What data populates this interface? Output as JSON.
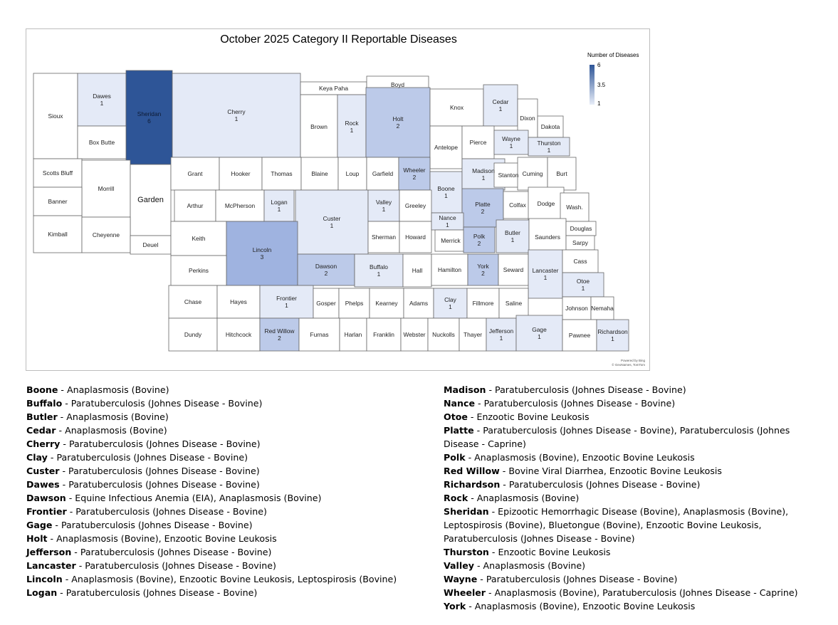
{
  "map": {
    "title": "October 2025 Category II Reportable Diseases",
    "legend": {
      "title": "Number of Diseases",
      "max": "6",
      "mid": "3.5",
      "min": "1"
    },
    "attribution": [
      "Powered by Bing",
      "© GeoNames, TomTom"
    ],
    "colors": {
      "c1": "#e4eaf7",
      "c2": "#bccae9",
      "c3": "#9fb3e0",
      "c6": "#2e5597",
      "none": "#ffffff"
    },
    "counties": [
      {
        "name": "Sioux",
        "count": "",
        "x": "",
        "y": ""
      },
      {
        "name": "Dawes",
        "count": "1"
      },
      {
        "name": "Sheridan",
        "count": "6"
      },
      {
        "name": "Cherry",
        "count": "1"
      },
      {
        "name": "Keya Paha",
        "count": ""
      },
      {
        "name": "Boyd",
        "count": ""
      },
      {
        "name": "Box Butte",
        "count": ""
      },
      {
        "name": "Brown",
        "count": ""
      },
      {
        "name": "Rock",
        "count": "1"
      },
      {
        "name": "Holt",
        "count": "2"
      },
      {
        "name": "Knox",
        "count": ""
      },
      {
        "name": "Cedar",
        "count": "1"
      },
      {
        "name": "Dixon",
        "count": ""
      },
      {
        "name": "Dakota",
        "count": ""
      },
      {
        "name": "Antelope",
        "count": ""
      },
      {
        "name": "Pierce",
        "count": ""
      },
      {
        "name": "Wayne",
        "count": "1"
      },
      {
        "name": "Thurston",
        "count": "1"
      },
      {
        "name": "Scotts Bluff",
        "count": ""
      },
      {
        "name": "Morrill",
        "count": ""
      },
      {
        "name": "Garden",
        "count": ""
      },
      {
        "name": "Grant",
        "count": ""
      },
      {
        "name": "Hooker",
        "count": ""
      },
      {
        "name": "Thomas",
        "count": ""
      },
      {
        "name": "Blaine",
        "count": ""
      },
      {
        "name": "Loup",
        "count": ""
      },
      {
        "name": "Garfield",
        "count": ""
      },
      {
        "name": "Wheeler",
        "count": "2"
      },
      {
        "name": "Boone",
        "count": "1"
      },
      {
        "name": "Madison",
        "count": "1"
      },
      {
        "name": "Stanton",
        "count": ""
      },
      {
        "name": "Cuming",
        "count": ""
      },
      {
        "name": "Burt",
        "count": ""
      },
      {
        "name": "Banner",
        "count": ""
      },
      {
        "name": "Arthur",
        "count": ""
      },
      {
        "name": "McPherson",
        "count": ""
      },
      {
        "name": "Logan",
        "count": "1"
      },
      {
        "name": "Custer",
        "count": "1"
      },
      {
        "name": "Valley",
        "count": "1"
      },
      {
        "name": "Greeley",
        "count": ""
      },
      {
        "name": "Platte",
        "count": "2"
      },
      {
        "name": "Colfax",
        "count": ""
      },
      {
        "name": "Dodge",
        "count": ""
      },
      {
        "name": "Wash.",
        "count": ""
      },
      {
        "name": "Kimball",
        "count": ""
      },
      {
        "name": "Cheyenne",
        "count": ""
      },
      {
        "name": "Deuel",
        "count": ""
      },
      {
        "name": "Keith",
        "count": ""
      },
      {
        "name": "Lincoln",
        "count": "3"
      },
      {
        "name": "Sherman",
        "count": ""
      },
      {
        "name": "Howard",
        "count": ""
      },
      {
        "name": "Nance",
        "count": "1"
      },
      {
        "name": "Merrick",
        "count": ""
      },
      {
        "name": "Polk",
        "count": "2"
      },
      {
        "name": "Butler",
        "count": "1"
      },
      {
        "name": "Saunders",
        "count": ""
      },
      {
        "name": "Douglas",
        "count": ""
      },
      {
        "name": "Sarpy",
        "count": ""
      },
      {
        "name": "Perkins",
        "count": ""
      },
      {
        "name": "Dawson",
        "count": "2"
      },
      {
        "name": "Buffalo",
        "count": "1"
      },
      {
        "name": "Hall",
        "count": ""
      },
      {
        "name": "Hamilton",
        "count": ""
      },
      {
        "name": "York",
        "count": "2"
      },
      {
        "name": "Seward",
        "count": ""
      },
      {
        "name": "Lancaster",
        "count": "1"
      },
      {
        "name": "Cass",
        "count": ""
      },
      {
        "name": "Otoe",
        "count": "1"
      },
      {
        "name": "Chase",
        "count": ""
      },
      {
        "name": "Hayes",
        "count": ""
      },
      {
        "name": "Frontier",
        "count": "1"
      },
      {
        "name": "Gosper",
        "count": ""
      },
      {
        "name": "Phelps",
        "count": ""
      },
      {
        "name": "Kearney",
        "count": ""
      },
      {
        "name": "Adams",
        "count": ""
      },
      {
        "name": "Clay",
        "count": "1"
      },
      {
        "name": "Fillmore",
        "count": ""
      },
      {
        "name": "Saline",
        "count": ""
      },
      {
        "name": "Johnson",
        "count": ""
      },
      {
        "name": "Nemaha",
        "count": ""
      },
      {
        "name": "Dundy",
        "count": ""
      },
      {
        "name": "Hitchcock",
        "count": ""
      },
      {
        "name": "Red Willow",
        "count": "2"
      },
      {
        "name": "Furnas",
        "count": ""
      },
      {
        "name": "Harlan",
        "count": ""
      },
      {
        "name": "Franklin",
        "count": ""
      },
      {
        "name": "Webster",
        "count": ""
      },
      {
        "name": "Nuckolls",
        "count": ""
      },
      {
        "name": "Thayer",
        "count": ""
      },
      {
        "name": "Jefferson",
        "count": "1"
      },
      {
        "name": "Gage",
        "count": "1"
      },
      {
        "name": "Pawnee",
        "count": ""
      },
      {
        "name": "Richardson",
        "count": "1"
      }
    ]
  },
  "diseases_left": [
    {
      "county": "Boone",
      "sep": " - ",
      "diseases": "Anaplasmosis (Bovine)"
    },
    {
      "county": "Buffalo",
      "sep": " - ",
      "diseases": "Paratuberculosis (Johnes Disease - Bovine)"
    },
    {
      "county": "Butler",
      "sep": " - ",
      "diseases": "Anaplasmosis (Bovine)"
    },
    {
      "county": "Cedar",
      "sep": " - ",
      "diseases": "Anaplasmosis (Bovine)"
    },
    {
      "county": "Cherry",
      "sep": " - ",
      "diseases": "Paratuberculosis (Johnes Disease - Bovine)"
    },
    {
      "county": "Clay",
      "sep": " - ",
      "diseases": "Paratuberculosis (Johnes Disease - Bovine)"
    },
    {
      "county": "Custer",
      "sep": " - ",
      "diseases": "Paratuberculosis (Johnes Disease - Bovine)"
    },
    {
      "county": "Dawes",
      "sep": " - ",
      "diseases": "Paratuberculosis (Johnes Disease - Bovine)"
    },
    {
      "county": "Dawson",
      "sep": " - ",
      "diseases": "Equine Infectious Anemia (EIA), Anaplasmosis (Bovine)"
    },
    {
      "county": "Frontier",
      "sep": " - ",
      "diseases": "Paratuberculosis (Johnes Disease - Bovine)"
    },
    {
      "county": "Gage",
      "sep": " - ",
      "diseases": "Paratuberculosis (Johnes Disease - Bovine)"
    },
    {
      "county": "Holt",
      "sep": " - ",
      "diseases": "Anaplasmosis (Bovine), Enzootic Bovine Leukosis"
    },
    {
      "county": "Jefferson",
      "sep": " - ",
      "diseases": "Paratuberculosis (Johnes Disease - Bovine)"
    },
    {
      "county": "Lancaster",
      "sep": " - ",
      "diseases": "Paratuberculosis (Johnes Disease - Bovine)"
    },
    {
      "county": "Lincoln",
      "sep": " - ",
      "diseases": "Anaplasmosis (Bovine), Enzootic Bovine Leukosis, Leptospirosis (Bovine)"
    },
    {
      "county": "Logan",
      "sep": " - ",
      "diseases": "Paratuberculosis (Johnes Disease - Bovine)"
    }
  ],
  "diseases_right": [
    {
      "county": "Madison",
      "sep": " - ",
      "diseases": "Paratuberculosis (Johnes Disease - Bovine)"
    },
    {
      "county": "Nance",
      "sep": " - ",
      "diseases": "Paratuberculosis (Johnes Disease - Bovine)"
    },
    {
      "county": "Otoe",
      "sep": " - ",
      "diseases": "Enzootic Bovine Leukosis"
    },
    {
      "county": "Platte",
      "sep": " - ",
      "diseases": "Paratuberculosis (Johnes Disease - Bovine), Paratuberculosis (Johnes Disease - Caprine)"
    },
    {
      "county": "Polk",
      "sep": " - ",
      "diseases": "Anaplasmosis (Bovine), Enzootic Bovine Leukosis"
    },
    {
      "county": "Red Willow",
      "sep": " - ",
      "diseases": "Bovine Viral Diarrhea, Enzootic Bovine Leukosis"
    },
    {
      "county": "Richardson",
      "sep": " - ",
      "diseases": "Paratuberculosis (Johnes Disease - Bovine)"
    },
    {
      "county": "Rock",
      "sep": " - ",
      "diseases": "Anaplasmosis (Bovine)"
    },
    {
      "county": "Sheridan",
      "sep": " - ",
      "diseases": "Epizootic Hemorrhagic Disease (Bovine), Anaplasmosis (Bovine), Leptospirosis (Bovine), Bluetongue (Bovine), Enzootic Bovine Leukosis, Paratuberculosis (Johnes Disease - Bovine)"
    },
    {
      "county": "Thurston",
      "sep": " - ",
      "diseases": "Enzootic Bovine Leukosis"
    },
    {
      "county": "Valley",
      "sep": " - ",
      "diseases": "Anaplasmosis (Bovine)"
    },
    {
      "county": "Wayne",
      "sep": " - ",
      "diseases": "Paratuberculosis (Johnes Disease - Bovine)"
    },
    {
      "county": "Wheeler",
      "sep": " - ",
      "diseases": "Anaplasmosis (Bovine), Paratuberculosis (Johnes Disease - Caprine)"
    },
    {
      "county": "York",
      "sep": " - ",
      "diseases": "Anaplasmosis (Bovine), Enzootic Bovine Leukosis"
    }
  ]
}
